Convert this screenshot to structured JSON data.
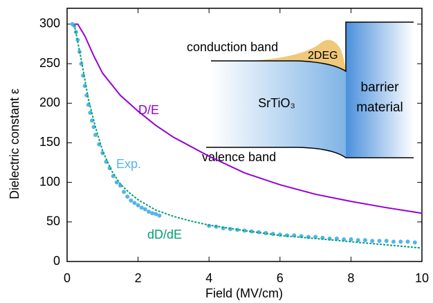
{
  "chart_data": {
    "type": "line",
    "x_label": "Field (MV/cm)",
    "y_label": "Dielectric constant ε",
    "xlim": [
      0,
      10
    ],
    "xticks": [
      0,
      2,
      4,
      6,
      8,
      10
    ],
    "ylim": [
      0,
      320
    ],
    "yticks": [
      0,
      50,
      100,
      150,
      200,
      250,
      300
    ],
    "series": [
      {
        "name": "D/E",
        "color": "#9400d3",
        "style": "solid",
        "x": [
          0.2,
          0.3,
          0.5,
          0.75,
          1,
          1.5,
          2,
          2.5,
          3,
          4,
          5,
          6,
          7,
          8,
          9,
          10
        ],
        "values": [
          300,
          300,
          285,
          260,
          238,
          210,
          190,
          172,
          157,
          133,
          112,
          97,
          85,
          76,
          68,
          61
        ]
      },
      {
        "name": "Exp.",
        "color": "#56b4e9",
        "style": "dots",
        "x": [
          0.15,
          0.2,
          0.25,
          0.3,
          0.35,
          0.4,
          0.45,
          0.5,
          0.55,
          0.6,
          0.65,
          0.7,
          0.75,
          0.8,
          0.9,
          1.0,
          1.1,
          1.2,
          1.3,
          1.4,
          1.5,
          1.6,
          1.7,
          1.8,
          1.9,
          2.0,
          2.1,
          2.2,
          2.3,
          2.4,
          2.5,
          2.6,
          4.0,
          4.2,
          4.4,
          4.6,
          4.8,
          5.0,
          5.2,
          5.4,
          5.6,
          5.8,
          6.0,
          6.2,
          6.4,
          6.6,
          6.8,
          7.0,
          7.2,
          7.4,
          7.6,
          7.8,
          8.0,
          8.2,
          8.4,
          8.6,
          8.8,
          9.0,
          9.2,
          9.4,
          9.6,
          9.8
        ],
        "values": [
          300,
          298,
          290,
          280,
          265,
          250,
          235,
          222,
          210,
          198,
          188,
          178,
          170,
          160,
          148,
          137,
          126,
          118,
          108,
          100,
          96,
          88,
          82,
          77,
          74,
          71,
          68,
          66,
          63,
          61,
          60,
          58,
          45,
          44,
          42,
          41,
          40,
          39,
          38,
          37,
          36,
          35,
          34,
          33,
          33,
          32,
          31,
          31,
          30,
          29,
          29,
          28,
          28,
          27,
          27,
          26,
          26,
          26,
          25,
          25,
          25,
          24
        ]
      },
      {
        "name": "dD/dE",
        "color": "#009e73",
        "style": "dashed",
        "x": [
          0.2,
          0.4,
          0.6,
          0.8,
          1,
          1.25,
          1.5,
          1.75,
          2,
          2.5,
          3,
          3.5,
          4,
          5,
          6,
          7,
          8,
          9,
          10
        ],
        "values": [
          300,
          255,
          205,
          170,
          140,
          115,
          98,
          87,
          78,
          65,
          57,
          51,
          46,
          39,
          33,
          29,
          25,
          21,
          17
        ]
      }
    ],
    "inset": {
      "conduction": "conduction band",
      "gas": "2DEG",
      "substrate": "SrTiO₃",
      "barrier": [
        "barrier",
        "material"
      ],
      "valence": "valence band"
    }
  }
}
